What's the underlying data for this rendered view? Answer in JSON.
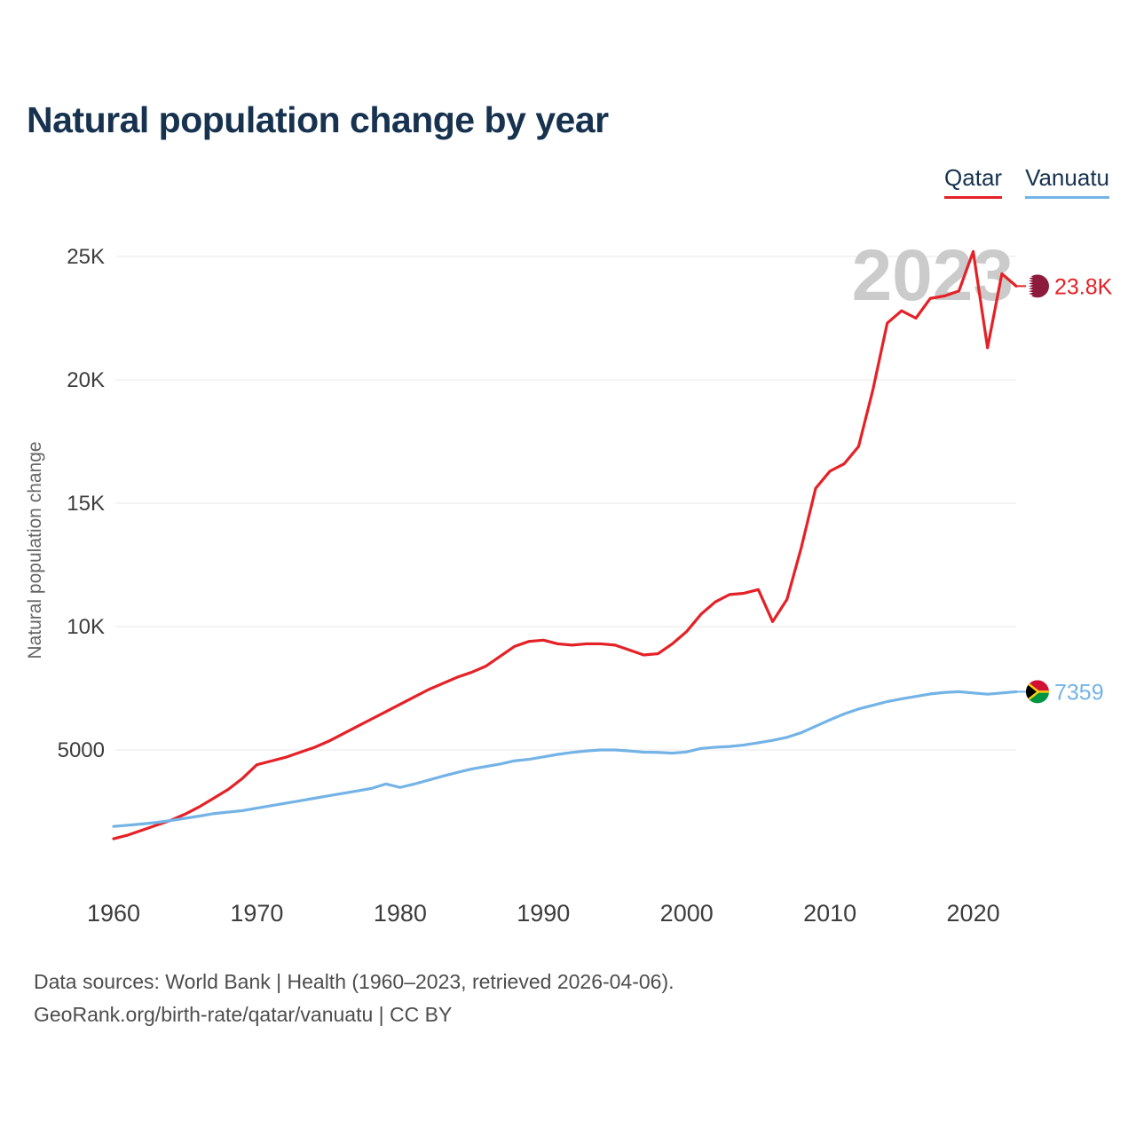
{
  "page": {
    "title": "Natural population change by year",
    "watermark": "2023",
    "footer": {
      "line1": "Data sources: World Bank | Health (1960–2023, retrieved 2026-04-06).",
      "line2": "GeoRank.org/birth-rate/qatar/vanuatu | CC BY"
    }
  },
  "legend": [
    {
      "label": "Qatar",
      "color": "#e42127"
    },
    {
      "label": "Vanuatu",
      "color": "#73b3e6"
    }
  ],
  "chart_data": {
    "type": "line",
    "title": "Natural population change by year",
    "xlabel": "",
    "ylabel": "Natural population change",
    "x_start": 1960,
    "x_end": 2023,
    "xticks": [
      1960,
      1970,
      1980,
      1990,
      2000,
      2010,
      2020
    ],
    "yticks": [
      {
        "value": 5000,
        "label": "5000"
      },
      {
        "value": 10000,
        "label": "10K"
      },
      {
        "value": 15000,
        "label": "15K"
      },
      {
        "value": 20000,
        "label": "20K"
      },
      {
        "value": 25000,
        "label": "25K"
      }
    ],
    "ylim": [
      0,
      26500
    ],
    "grid": true,
    "legend_position": "top-right",
    "series": [
      {
        "name": "Qatar",
        "color": "#e42127",
        "end_label": "23.8K",
        "flag_icon": "qatar-flag-icon",
        "flag_colors": {
          "maroon": "#8d1b3d",
          "white": "#ffffff"
        },
        "values": [
          1400,
          1550,
          1750,
          1950,
          2150,
          2400,
          2700,
          3050,
          3400,
          3850,
          4400,
          4550,
          4700,
          4900,
          5100,
          5350,
          5650,
          5950,
          6250,
          6550,
          6850,
          7150,
          7450,
          7700,
          7950,
          8150,
          8400,
          8800,
          9200,
          9400,
          9450,
          9300,
          9250,
          9300,
          9300,
          9250,
          9050,
          8850,
          8900,
          9300,
          9800,
          10500,
          11000,
          11300,
          11350,
          11500,
          10200,
          11100,
          13200,
          15600,
          16300,
          16600,
          17300,
          19600,
          22300,
          22800,
          22500,
          23300,
          23400,
          23600,
          25200,
          21300,
          24300,
          23800
        ]
      },
      {
        "name": "Vanuatu",
        "color": "#73b3e6",
        "end_label": "7359",
        "flag_icon": "vanuatu-flag-icon",
        "flag_colors": {
          "red": "#d21034",
          "green": "#009543",
          "black": "#000000",
          "yellow": "#fdce12"
        },
        "values": [
          1900,
          1950,
          2000,
          2060,
          2140,
          2230,
          2320,
          2420,
          2480,
          2540,
          2640,
          2740,
          2840,
          2940,
          3040,
          3140,
          3240,
          3340,
          3440,
          3620,
          3480,
          3620,
          3780,
          3940,
          4090,
          4230,
          4330,
          4430,
          4560,
          4620,
          4720,
          4820,
          4900,
          4960,
          5000,
          5000,
          4960,
          4910,
          4900,
          4870,
          4920,
          5060,
          5110,
          5140,
          5200,
          5290,
          5390,
          5510,
          5700,
          5960,
          6220,
          6460,
          6660,
          6810,
          6960,
          7070,
          7170,
          7270,
          7330,
          7360,
          7310,
          7260,
          7310,
          7359
        ]
      }
    ]
  }
}
